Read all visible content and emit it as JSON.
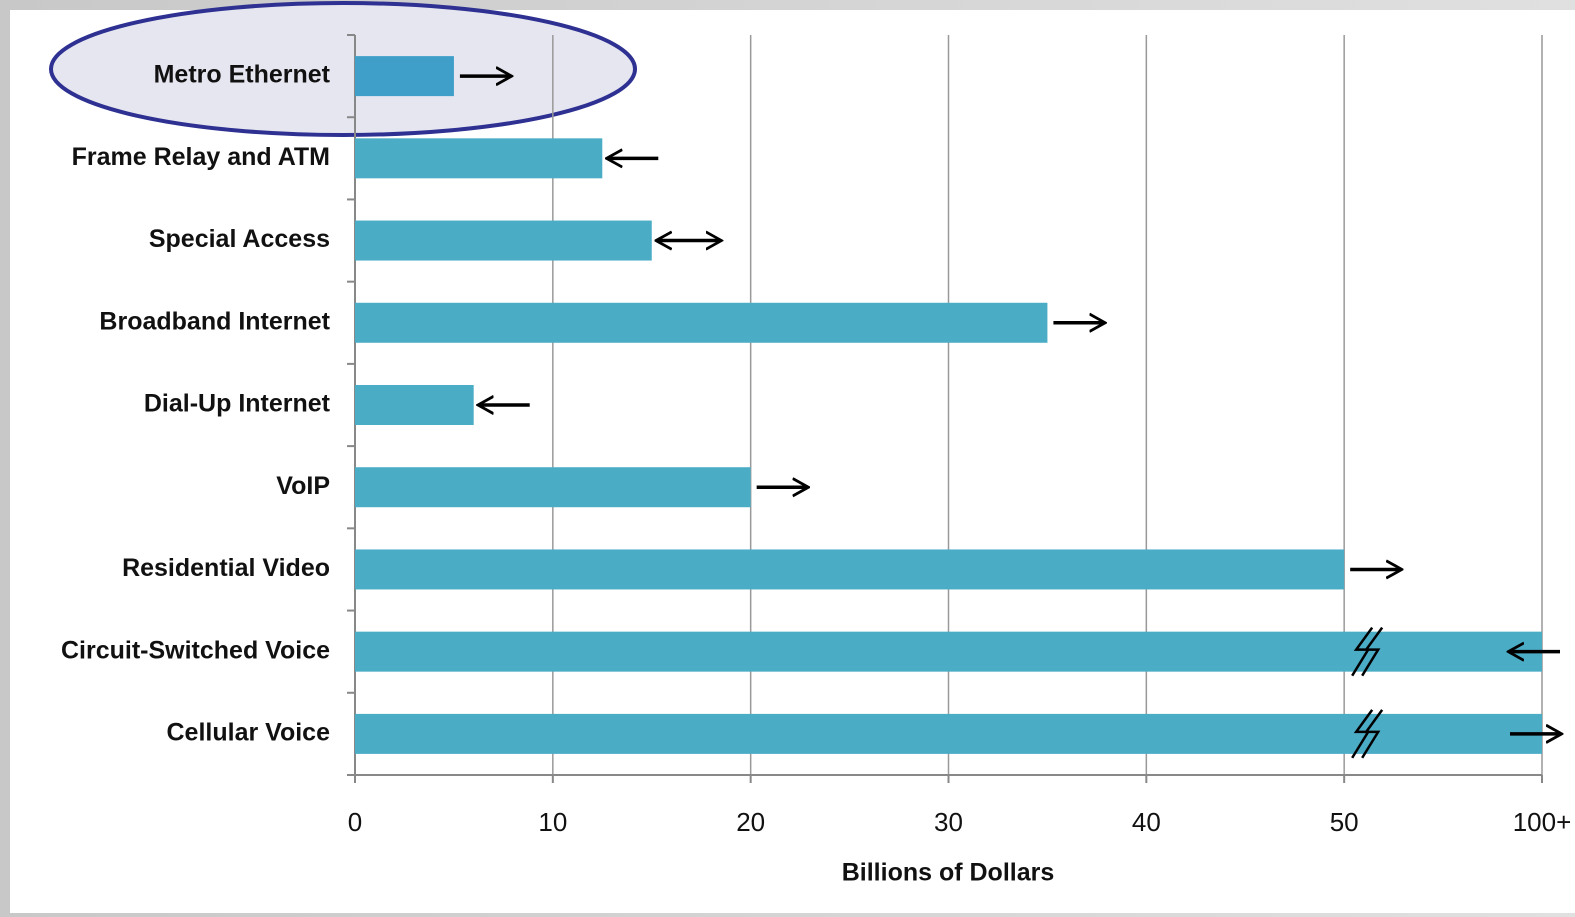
{
  "chart_data": {
    "type": "bar",
    "orientation": "horizontal",
    "categories": [
      "Metro Ethernet",
      "Frame Relay and ATM",
      "Special Access",
      "Broadband Internet",
      "Dial-Up Internet",
      "VoIP",
      "Residential Video",
      "Circuit-Switched Voice",
      "Cellular Voice"
    ],
    "values": [
      5,
      12.5,
      15,
      35,
      6,
      20,
      50,
      60,
      60
    ],
    "colors": [
      "#3f9fc8",
      "#4bacc6",
      "#4bacc6",
      "#4bacc6",
      "#4bacc6",
      "#4bacc6",
      "#4bacc6",
      "#4bacc6",
      "#4bacc6"
    ],
    "arrows": [
      "right",
      "left",
      "both",
      "right",
      "left",
      "right",
      "right",
      "left",
      "right"
    ],
    "xlim": [
      0,
      60
    ],
    "xticks": [
      0,
      10,
      20,
      30,
      40,
      50,
      {
        "value": 60,
        "label": "100+"
      }
    ],
    "xlabel": "Billions of Dollars",
    "grid": true
  }
}
